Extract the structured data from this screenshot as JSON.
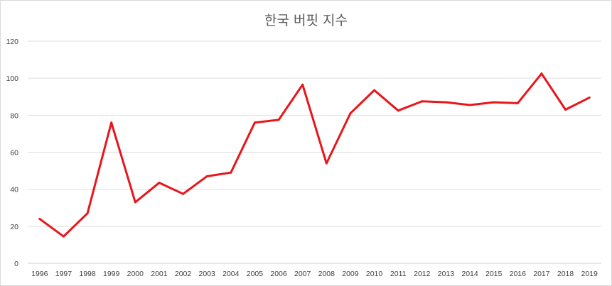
{
  "chart_data": {
    "type": "line",
    "title": "한국 버핏 지수",
    "categories": [
      "1996",
      "1997",
      "1998",
      "1999",
      "2000",
      "2001",
      "2002",
      "2003",
      "2004",
      "2005",
      "2006",
      "2007",
      "2008",
      "2009",
      "2010",
      "2011",
      "2012",
      "2013",
      "2014",
      "2015",
      "2016",
      "2017",
      "2018",
      "2019"
    ],
    "series": [
      {
        "values": [
          24,
          14.5,
          27,
          76,
          33,
          43.5,
          37.5,
          47,
          49,
          76,
          77.5,
          96.5,
          54,
          81,
          93.5,
          82.5,
          87.5,
          87,
          85.5,
          87,
          86.5,
          102.5,
          83,
          89.5
        ],
        "color": "#e8161b"
      }
    ],
    "ylim": [
      0,
      120
    ],
    "yticks": [
      0,
      20,
      40,
      60,
      80,
      100,
      120
    ],
    "grid": "horizontal",
    "legend": "none"
  }
}
